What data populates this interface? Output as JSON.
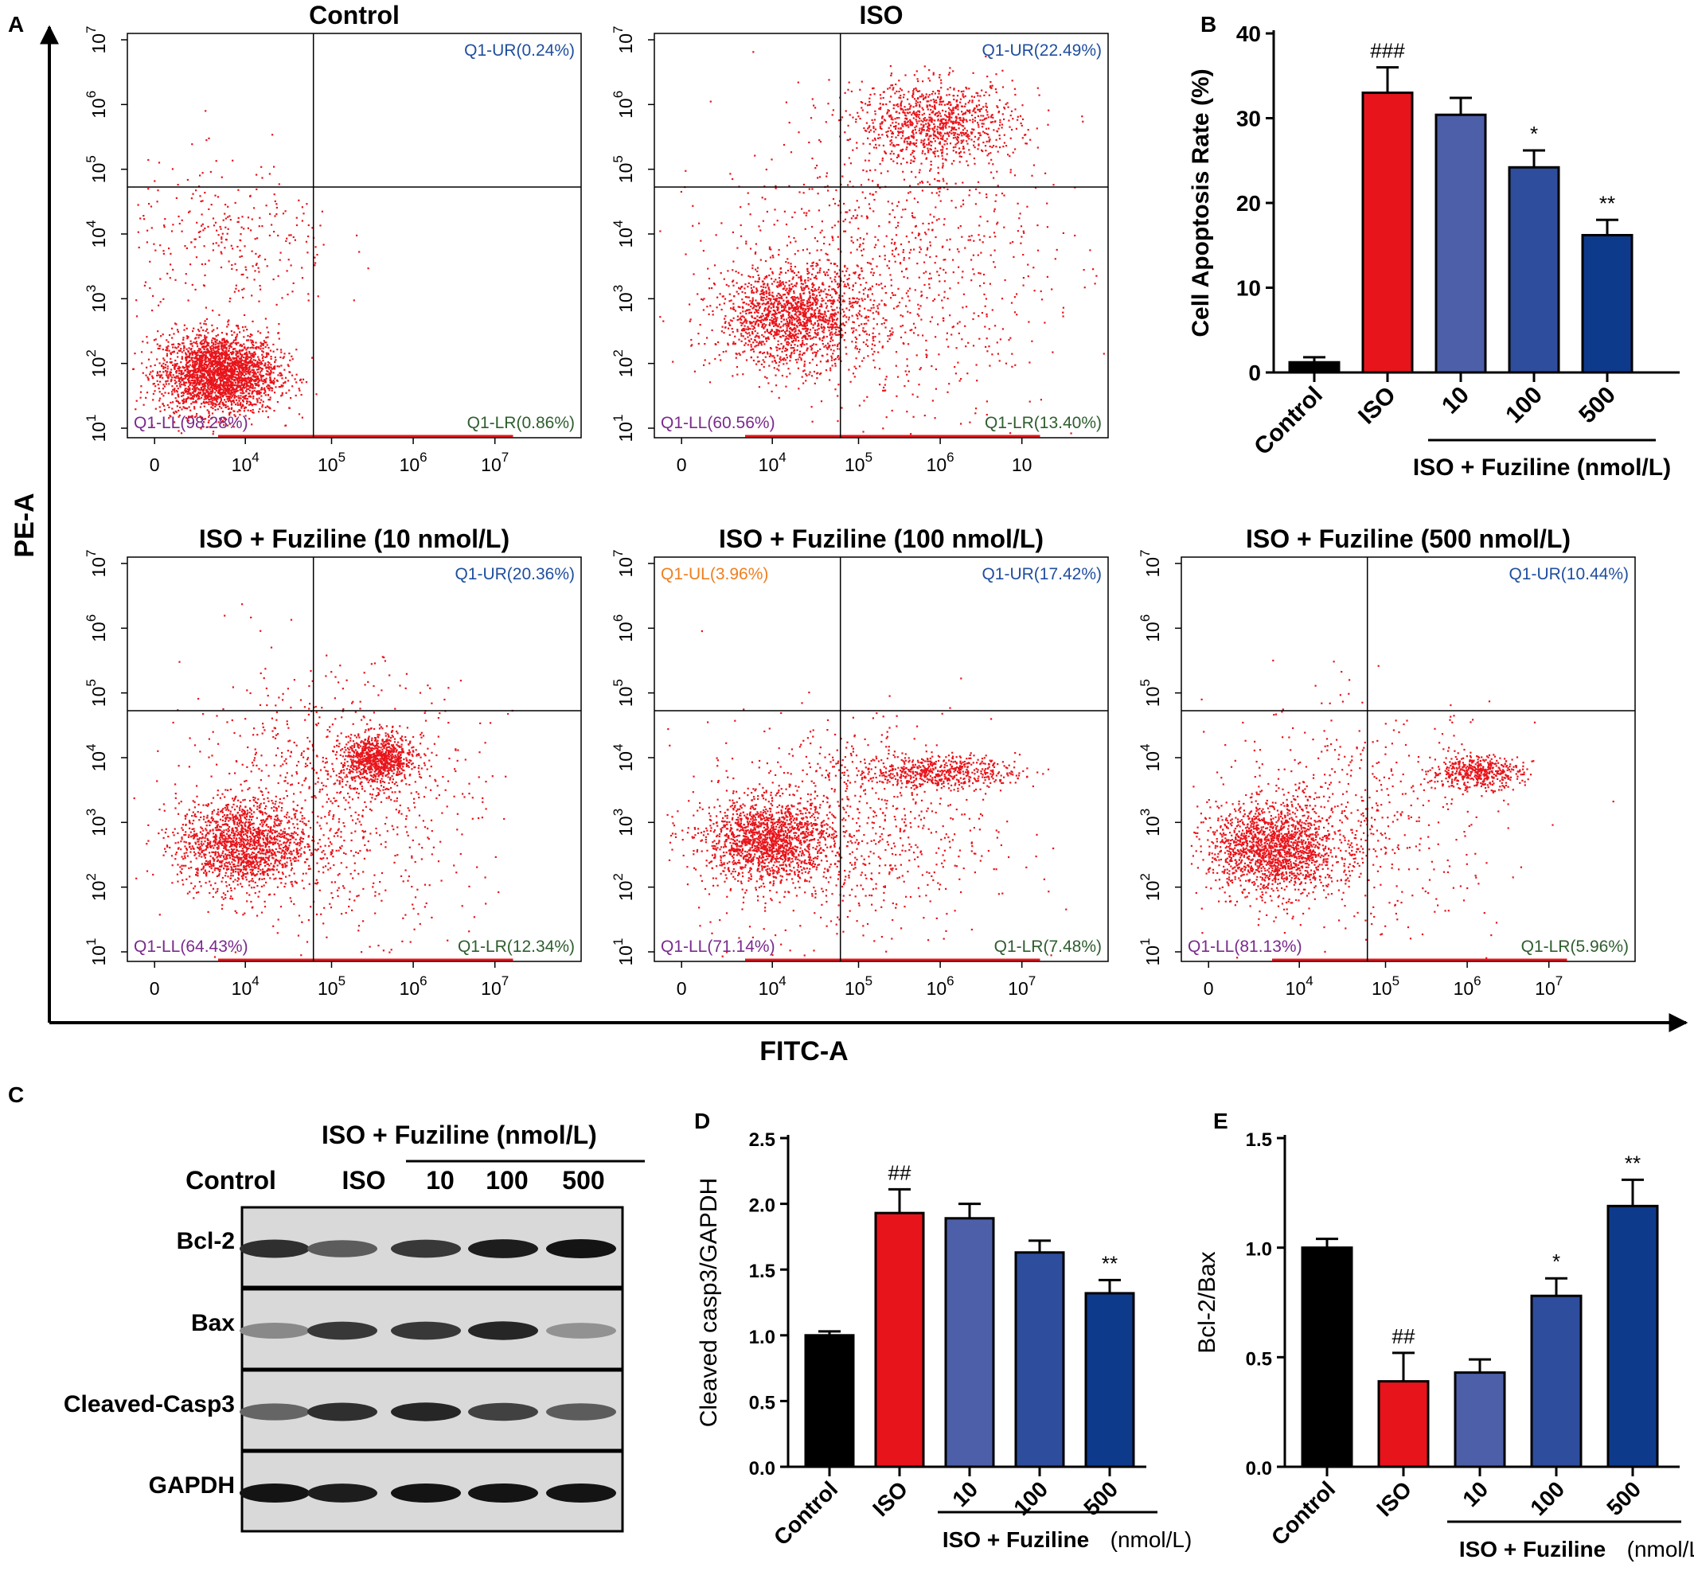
{
  "panel_letters": {
    "a": "A",
    "b": "B",
    "c": "C",
    "d": "D",
    "e": "E"
  },
  "flow": {
    "y_axis_label": "PE-A",
    "x_axis_label": "FITC-A",
    "y_ticks": [
      {
        "base": "10",
        "exp": "1"
      },
      {
        "base": "10",
        "exp": "2"
      },
      {
        "base": "10",
        "exp": "3"
      },
      {
        "base": "10",
        "exp": "4"
      },
      {
        "base": "10",
        "exp": "5"
      },
      {
        "base": "10",
        "exp": "6"
      },
      {
        "base": "10",
        "exp": "7"
      }
    ],
    "x_ticks": [
      {
        "base": "0",
        "exp": ""
      },
      {
        "base": "10",
        "exp": "4"
      },
      {
        "base": "10",
        "exp": "5"
      },
      {
        "base": "10",
        "exp": "6"
      },
      {
        "base": "10",
        "exp": "7"
      }
    ],
    "x_ticks_iso": [
      {
        "base": "0",
        "exp": ""
      },
      {
        "base": "10",
        "exp": "4"
      },
      {
        "base": "10",
        "exp": "5"
      },
      {
        "base": "10",
        "exp": "6"
      },
      {
        "base": "10",
        "exp": ""
      }
    ],
    "colors": {
      "dots": "#e8141b",
      "UR": "#1f4e9e",
      "LL": "#7a2a8c",
      "LR": "#2e5d2e",
      "UL": "#f07f1e"
    },
    "plots": [
      {
        "title": "Control",
        "UR": "Q1-UR(0.24%)",
        "LL": "Q1-LL(98.28%)",
        "LR": "Q1-LR(0.86%)",
        "UL": ""
      },
      {
        "title": "ISO",
        "UR": "Q1-UR(22.49%)",
        "LL": "Q1-LL(60.56%)",
        "LR": "Q1-LR(13.40%)",
        "UL": ""
      },
      {
        "title": "ISO + Fuziline (10 nmol/L)",
        "UR": "Q1-UR(20.36%)",
        "LL": "Q1-LL(64.43%)",
        "LR": "Q1-LR(12.34%)",
        "UL": ""
      },
      {
        "title": "ISO + Fuziline (100 nmol/L)",
        "UR": "Q1-UR(17.42%)",
        "LL": "Q1-LL(71.14%)",
        "LR": "Q1-LR(7.48%)",
        "UL": "Q1-UL(3.96%)"
      },
      {
        "title": "ISO + Fuziline (500 nmol/L)",
        "UR": "Q1-UR(10.44%)",
        "LL": "Q1-LL(81.13%)",
        "LR": "Q1-LR(5.96%)",
        "UL": ""
      }
    ]
  },
  "western": {
    "group_label": "ISO + Fuziline (nmol/L)",
    "lanes": [
      "Control",
      "ISO",
      "10",
      "100",
      "500"
    ],
    "rows": [
      {
        "label": "Bcl-2",
        "intensity": [
          0.85,
          0.6,
          0.8,
          0.95,
          1.0
        ]
      },
      {
        "label": "Bax",
        "intensity": [
          0.35,
          0.8,
          0.8,
          0.9,
          0.3
        ]
      },
      {
        "label": "Cleaved-Casp3",
        "intensity": [
          0.55,
          0.85,
          0.9,
          0.75,
          0.6
        ]
      },
      {
        "label": "GAPDH",
        "intensity": [
          1.0,
          0.95,
          1.0,
          1.0,
          1.0
        ]
      }
    ]
  },
  "bar_colors": [
    "#000000",
    "#e8141b",
    "#4d5fa8",
    "#2e4d9c",
    "#0e3a8c"
  ],
  "chart_data": [
    {
      "type": "bar",
      "panel": "B",
      "categories": [
        "Control",
        "ISO",
        "10",
        "100",
        "500"
      ],
      "values": [
        1.2,
        33.0,
        30.4,
        24.2,
        16.2
      ],
      "errors": [
        0.6,
        3.0,
        2.0,
        2.0,
        1.8
      ],
      "annotations": [
        "",
        "###",
        "",
        "*",
        "**"
      ],
      "ylabel": "Cell Apoptosis Rate (%)",
      "ylim": [
        0,
        40
      ],
      "yticks": [
        0,
        10,
        20,
        30,
        40
      ],
      "ytick_labels": [
        "0",
        "10",
        "20",
        "30",
        "40"
      ],
      "group_label": "ISO + Fuziline (nmol/L)"
    },
    {
      "type": "bar",
      "panel": "D",
      "categories": [
        "Control",
        "ISO",
        "10",
        "100",
        "500"
      ],
      "values": [
        1.0,
        1.93,
        1.89,
        1.63,
        1.32
      ],
      "errors": [
        0.03,
        0.18,
        0.11,
        0.09,
        0.1
      ],
      "annotations": [
        "",
        "##",
        "",
        "",
        "**"
      ],
      "ylabel": "Cleaved casp3/GAPDH",
      "ylim": [
        0,
        2.5
      ],
      "yticks": [
        0,
        0.5,
        1.0,
        1.5,
        2.0,
        2.5
      ],
      "ytick_labels": [
        "0.0",
        "0.5",
        "1.0",
        "1.5",
        "2.0",
        "2.5"
      ],
      "group_label": "ISO + Fuziline",
      "group_unit": "(nmol/L)"
    },
    {
      "type": "bar",
      "panel": "E",
      "categories": [
        "Control",
        "ISO",
        "10",
        "100",
        "500"
      ],
      "values": [
        1.0,
        0.39,
        0.43,
        0.78,
        1.19
      ],
      "errors": [
        0.04,
        0.13,
        0.06,
        0.08,
        0.12
      ],
      "annotations": [
        "",
        "##",
        "",
        "*",
        "**"
      ],
      "ylabel": "Bcl-2/Bax",
      "ylim": [
        0,
        1.5
      ],
      "yticks": [
        0,
        0.5,
        1.0,
        1.5
      ],
      "ytick_labels": [
        "0.0",
        "0.5",
        "1.0",
        "1.5"
      ],
      "group_label": "ISO + Fuziline",
      "group_unit": "(nmol/L)"
    }
  ]
}
